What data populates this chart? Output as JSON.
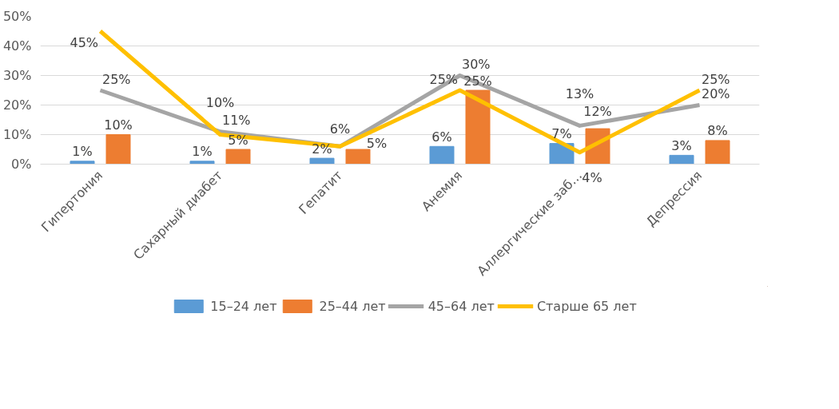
{
  "chart_data": {
    "type": "bar",
    "categories": [
      "Гипертония",
      "Сахарный диабет",
      "Гепатит",
      "Анемия",
      "Аллергические заб…",
      "Депрессия"
    ],
    "series": [
      {
        "name": "15–24 лет",
        "color": "#5b9bd5",
        "values": [
          1,
          1,
          2,
          6,
          7,
          3
        ],
        "value_labels": [
          "1%",
          "1%",
          "2%",
          "6%",
          "7%",
          "3%"
        ]
      },
      {
        "name": "25–44 лет",
        "color": "#ed7d31",
        "values": [
          10,
          5,
          5,
          25,
          12,
          8
        ],
        "value_labels": [
          "10%",
          "5%",
          "5%",
          "25%",
          "12%",
          "8%"
        ]
      },
      {
        "name": "45–64 лет",
        "type": "line",
        "color": "#a5a5a5",
        "values": [
          25,
          11,
          6,
          30,
          13,
          20
        ],
        "value_labels": [
          "25%",
          "11%",
          "6%",
          "30%",
          "13%",
          "20%"
        ]
      },
      {
        "name": "Старше 65 лет",
        "type": "line",
        "color": "#ffc000",
        "values": [
          45,
          10,
          6,
          25,
          4,
          25
        ],
        "value_labels": [
          "45%",
          "10%",
          null,
          "25%",
          "4%",
          "25%"
        ]
      }
    ],
    "ylim": [
      0,
      50
    ],
    "yticks": [
      {
        "value": 0,
        "label": "0%"
      },
      {
        "value": 10,
        "label": "10%"
      },
      {
        "value": 20,
        "label": "20%"
      },
      {
        "value": 30,
        "label": "30%"
      },
      {
        "value": 40,
        "label": "40%"
      },
      {
        "value": 50,
        "label": "50%"
      }
    ],
    "grid": "y",
    "legend": "bottom",
    "line_style": "solid",
    "marker": "none"
  }
}
